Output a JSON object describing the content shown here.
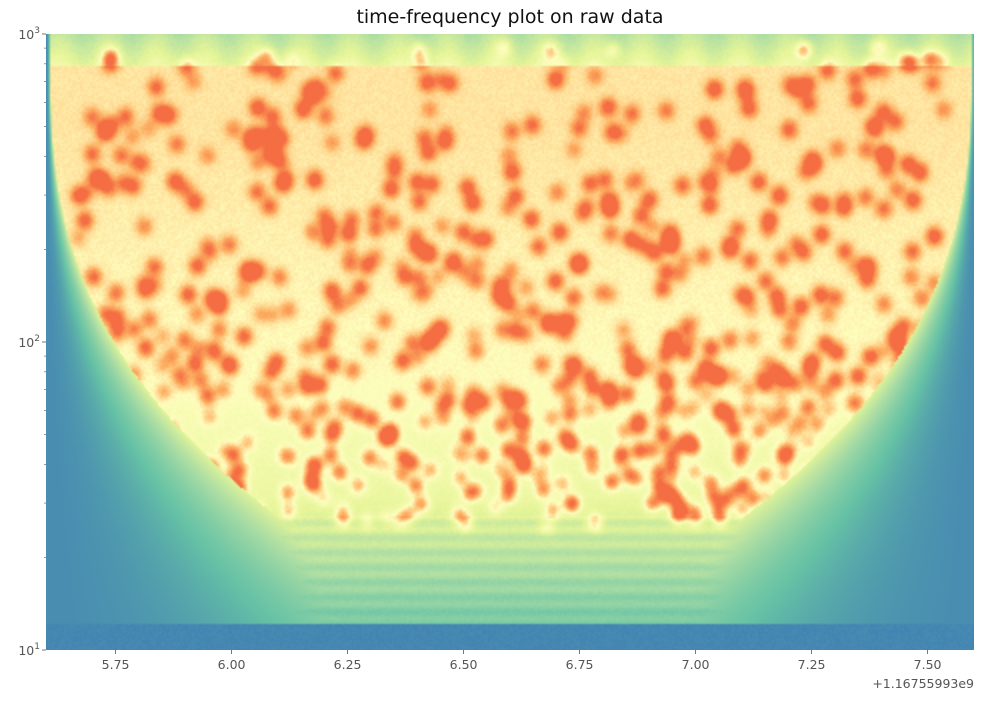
{
  "chart_data": {
    "type": "heatmap",
    "title": "time-frequency plot on raw data",
    "xlabel": "",
    "ylabel": "",
    "x_offset_label": "+1.16755993e9",
    "x_range": [
      5.6,
      7.6
    ],
    "x_ticks": [
      5.75,
      6.0,
      6.25,
      6.5,
      6.75,
      7.0,
      7.25,
      7.5
    ],
    "x_tick_labels": [
      "5.75",
      "6.00",
      "6.25",
      "6.50",
      "6.75",
      "7.00",
      "7.25",
      "7.50"
    ],
    "y_scale": "log",
    "y_range": [
      10,
      1000
    ],
    "y_major_ticks": [
      10,
      100,
      1000
    ],
    "y_tick_labels": [
      "10^1",
      "10^2",
      "10^3"
    ],
    "y_minor_ticks": [
      20,
      30,
      40,
      50,
      60,
      70,
      80,
      90,
      200,
      300,
      400,
      500,
      600,
      700,
      800,
      900
    ],
    "colormap": "Spectral_r",
    "colors": {
      "low": "#3b75b6",
      "mid_low": "#66c2a5",
      "mid": "#e6f598",
      "high": "#fdae61",
      "peak": "#f46d43"
    },
    "grid": false
  }
}
